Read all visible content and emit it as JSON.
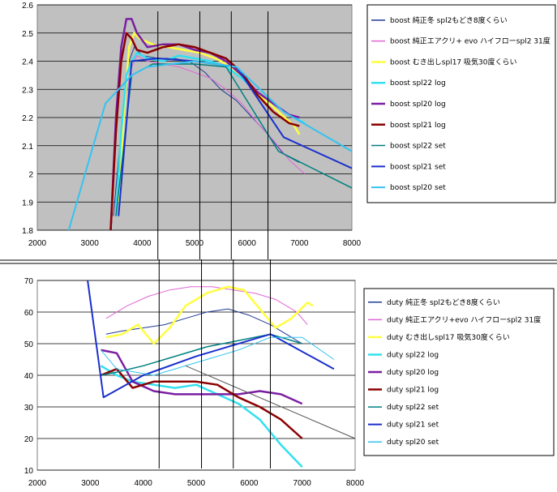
{
  "chart_data": [
    {
      "type": "line",
      "id": "boost",
      "xlim": [
        2000,
        8000
      ],
      "ylim": [
        1.8,
        2.6
      ],
      "x_ticks": [
        2000,
        3000,
        4000,
        5000,
        6000,
        7000,
        8000
      ],
      "y_ticks": [
        "1.8",
        "1.9",
        "2",
        "2.1",
        "2.2",
        "2.3",
        "2.4",
        "2.5",
        "2.6"
      ],
      "y_tick_values": [
        1.8,
        1.9,
        2.0,
        2.1,
        2.2,
        2.3,
        2.4,
        2.5,
        2.6
      ],
      "plot_bg": "#c0c0c0",
      "grid": true,
      "legend_position": "right",
      "vertical_markers": [
        4300,
        5100,
        5700,
        6400
      ],
      "series": [
        {
          "name": "boost 純正冬 spl2もどき8度くらい",
          "color": "#1f3a93",
          "width": 1,
          "x": [
            3450,
            3550,
            3650,
            3750,
            3850,
            4000,
            4300,
            4600,
            4900,
            5200,
            5500,
            5800,
            6100,
            6400,
            6700,
            7000
          ],
          "y": [
            1.85,
            2.05,
            2.25,
            2.4,
            2.45,
            2.42,
            2.41,
            2.41,
            2.4,
            2.36,
            2.3,
            2.26,
            2.2,
            2.14,
            2.07,
            2.04
          ]
        },
        {
          "name": "boost 純正エアクリ+ evo ハイフローspl2 31度",
          "color": "#e066d6",
          "width": 1,
          "x": [
            3500,
            3600,
            3700,
            3800,
            3900,
            4100,
            4400,
            4700,
            5000,
            5300,
            5600,
            5900,
            6200,
            6500,
            6800,
            7100
          ],
          "y": [
            1.9,
            2.1,
            2.28,
            2.38,
            2.42,
            2.4,
            2.39,
            2.38,
            2.36,
            2.34,
            2.3,
            2.25,
            2.18,
            2.12,
            2.05,
            2.0
          ]
        },
        {
          "name": "boost むき出しspl17 吸気30度くらい",
          "color": "#ffff40",
          "width": 2.5,
          "x": [
            3550,
            3650,
            3750,
            3850,
            3950,
            4200,
            4500,
            4800,
            5100,
            5400,
            5700,
            6000,
            6300,
            6600,
            6900,
            7000
          ],
          "y": [
            1.9,
            2.2,
            2.45,
            2.5,
            2.48,
            2.46,
            2.45,
            2.44,
            2.43,
            2.41,
            2.38,
            2.33,
            2.27,
            2.22,
            2.17,
            2.14
          ]
        },
        {
          "name": "boost spl22 log",
          "color": "#33e0ef",
          "width": 2.5,
          "x": [
            3500,
            3600,
            3700,
            3800,
            3900,
            4100,
            4400,
            4700,
            5000,
            5300,
            5600,
            5900,
            6200,
            6500,
            6800,
            7100
          ],
          "y": [
            1.85,
            2.15,
            2.35,
            2.4,
            2.43,
            2.41,
            2.4,
            2.42,
            2.41,
            2.4,
            2.38,
            2.34,
            2.29,
            2.25,
            2.21,
            2.18
          ]
        },
        {
          "name": "boost spl20 log",
          "color": "#7b1fa2",
          "width": 2.5,
          "x": [
            3400,
            3500,
            3600,
            3700,
            3800,
            3900,
            4100,
            4400,
            4700,
            5000,
            5300,
            5600,
            5900,
            6200,
            6500,
            6800,
            7000
          ],
          "y": [
            1.8,
            2.2,
            2.45,
            2.55,
            2.55,
            2.5,
            2.45,
            2.46,
            2.46,
            2.44,
            2.43,
            2.4,
            2.35,
            2.29,
            2.25,
            2.21,
            2.2
          ]
        },
        {
          "name": "boost spl21 log",
          "color": "#8b0000",
          "width": 2.5,
          "x": [
            3400,
            3500,
            3600,
            3700,
            3800,
            3900,
            4100,
            4400,
            4700,
            5000,
            5300,
            5600,
            5900,
            6200,
            6500,
            6800,
            7000
          ],
          "y": [
            1.8,
            2.15,
            2.4,
            2.5,
            2.48,
            2.44,
            2.43,
            2.45,
            2.46,
            2.45,
            2.43,
            2.41,
            2.36,
            2.28,
            2.22,
            2.18,
            2.17
          ]
        },
        {
          "name": "boost spl22 set",
          "color": "#008080",
          "width": 1.5,
          "x": [
            3500,
            3800,
            4200,
            5000,
            5600,
            6600,
            8000
          ],
          "y": [
            1.85,
            2.35,
            2.39,
            2.39,
            2.38,
            2.08,
            1.95
          ]
        },
        {
          "name": "boost spl21 set",
          "color": "#1a2fcc",
          "width": 2,
          "x": [
            3550,
            3800,
            4300,
            5000,
            5800,
            6700,
            8000
          ],
          "y": [
            1.85,
            2.4,
            2.41,
            2.4,
            2.38,
            2.13,
            2.02
          ]
        },
        {
          "name": "boost spl20 set",
          "color": "#33c3f0",
          "width": 2,
          "x": [
            2600,
            3300,
            3800,
            4100,
            5000,
            5800,
            6700,
            8000
          ],
          "y": [
            1.8,
            2.25,
            2.35,
            2.38,
            2.4,
            2.38,
            2.22,
            2.08
          ]
        }
      ]
    },
    {
      "type": "line",
      "id": "duty",
      "xlim": [
        2000,
        8000
      ],
      "ylim": [
        10,
        70
      ],
      "x_ticks": [
        2000,
        3000,
        4000,
        5000,
        6000,
        7000,
        8000
      ],
      "y_ticks": [
        "10",
        "20",
        "30",
        "40",
        "50",
        "60",
        "70"
      ],
      "y_tick_values": [
        10,
        20,
        30,
        40,
        50,
        60,
        70
      ],
      "plot_bg": "#ffffff",
      "grid": true,
      "legend_position": "right",
      "vertical_markers": [
        4300,
        5100,
        5700,
        6400
      ],
      "series": [
        {
          "name": "duty 純正冬 spl2もどき8度くらい",
          "color": "#1f3a93",
          "width": 1,
          "x": [
            3300,
            3600,
            4000,
            4400,
            4800,
            5200,
            5600,
            6000,
            6400,
            6800,
            7000
          ],
          "y": [
            53,
            54,
            55,
            56,
            58,
            60,
            61,
            59,
            56,
            52,
            50
          ]
        },
        {
          "name": "duty 純正エアクリ+evo ハイフローspl2 31度",
          "color": "#e066d6",
          "width": 1,
          "x": [
            3300,
            3700,
            4100,
            4500,
            4900,
            5300,
            5700,
            6100,
            6500,
            6900,
            7100
          ],
          "y": [
            58,
            62,
            65,
            67,
            68,
            68,
            67,
            66,
            64,
            60,
            56
          ]
        },
        {
          "name": "duty むき出しspl17 吸気30度くらい",
          "color": "#ffff40",
          "width": 2.5,
          "x": [
            3300,
            3600,
            3900,
            4200,
            4500,
            4800,
            5200,
            5600,
            5900,
            6200,
            6500,
            6800,
            7100,
            7200
          ],
          "y": [
            52,
            53,
            56,
            50,
            55,
            62,
            66,
            68,
            67,
            61,
            55,
            58,
            63,
            62
          ]
        },
        {
          "name": "duty spl22 log",
          "color": "#33e0ef",
          "width": 2.5,
          "x": [
            3200,
            3500,
            3800,
            4200,
            4600,
            5000,
            5400,
            5800,
            6200,
            6600,
            7000
          ],
          "y": [
            43,
            40,
            38,
            37,
            36,
            37,
            34,
            31,
            26,
            18,
            11
          ]
        },
        {
          "name": "duty spl20 log",
          "color": "#7b1fa2",
          "width": 2.5,
          "x": [
            3200,
            3500,
            3800,
            4200,
            4600,
            5000,
            5400,
            5800,
            6200,
            6600,
            7000
          ],
          "y": [
            48,
            47,
            38,
            35,
            34,
            34,
            34,
            34,
            35,
            34,
            31
          ]
        },
        {
          "name": "duty spl21 log",
          "color": "#8b0000",
          "width": 2.5,
          "x": [
            3200,
            3500,
            3800,
            4200,
            4600,
            5000,
            5400,
            5800,
            6200,
            6600,
            7000
          ],
          "y": [
            40,
            42,
            36,
            38,
            38,
            38,
            37,
            33,
            30,
            26,
            20
          ]
        },
        {
          "name": "duty spl22 set",
          "color": "#008080",
          "width": 1.5,
          "x": [
            3200,
            3500,
            4000,
            4600,
            5200,
            5800,
            6400,
            7000
          ],
          "y": [
            40,
            41,
            43,
            46,
            49,
            51,
            53,
            50
          ]
        },
        {
          "name": "duty spl21 set",
          "color": "#1a2fcc",
          "width": 2,
          "x": [
            2950,
            3250,
            4000,
            5000,
            6000,
            6400,
            7600
          ],
          "y": [
            70,
            33,
            40,
            46,
            51,
            53,
            42
          ]
        },
        {
          "name": "duty spl20 set",
          "color": "#33c3f0",
          "width": 1,
          "x": [
            3200,
            3500,
            4200,
            5000,
            5800,
            6400,
            7000,
            7600
          ],
          "y": [
            48,
            42,
            40,
            44,
            48,
            52,
            52,
            45
          ]
        }
      ]
    }
  ]
}
